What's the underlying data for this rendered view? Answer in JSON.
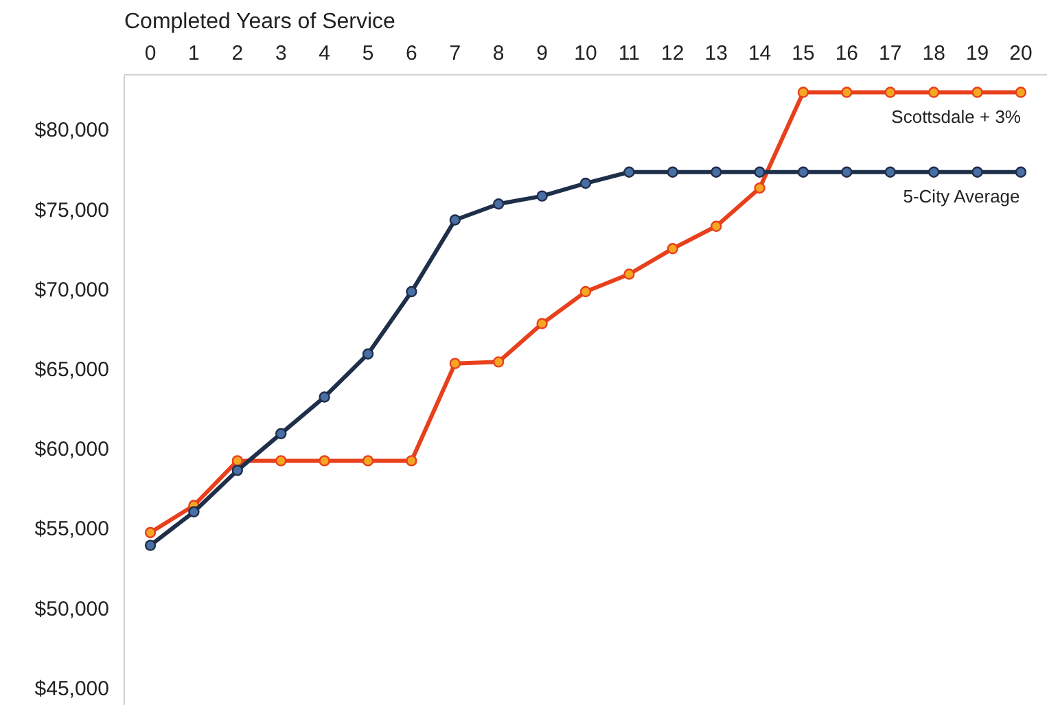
{
  "chart_data": {
    "type": "line",
    "xlabel": "Completed Years of Service",
    "x": [
      0,
      1,
      2,
      3,
      4,
      5,
      6,
      7,
      8,
      9,
      10,
      11,
      12,
      13,
      14,
      15,
      16,
      17,
      18,
      19,
      20
    ],
    "xlim": [
      -0.6,
      20.6
    ],
    "ylim": [
      44000,
      83500
    ],
    "xticks": [
      0,
      1,
      2,
      3,
      4,
      5,
      6,
      7,
      8,
      9,
      10,
      11,
      12,
      13,
      14,
      15,
      16,
      17,
      18,
      19,
      20
    ],
    "yticks": [
      {
        "value": 45000,
        "label": "$45,000"
      },
      {
        "value": 50000,
        "label": "$50,000"
      },
      {
        "value": 55000,
        "label": "$55,000"
      },
      {
        "value": 60000,
        "label": "$60,000"
      },
      {
        "value": 65000,
        "label": "$65,000"
      },
      {
        "value": 70000,
        "label": "$70,000"
      },
      {
        "value": 75000,
        "label": "$75,000"
      },
      {
        "value": 80000,
        "label": "$80,000"
      }
    ],
    "series": [
      {
        "name": "Scottsdale + 3%",
        "color": "#e8401c",
        "values": [
          54800,
          56500,
          59300,
          59300,
          59300,
          59300,
          59300,
          65400,
          65500,
          67900,
          69900,
          71000,
          72600,
          74000,
          76400,
          82400,
          82400,
          82400,
          82400,
          82400,
          82400
        ]
      },
      {
        "name": "5-City Average",
        "color": "#1f2f4a",
        "values": [
          54000,
          56100,
          58700,
          61000,
          63300,
          66000,
          69900,
          74400,
          75400,
          75900,
          76700,
          77400,
          77400,
          77400,
          77400,
          77400,
          77400,
          77400,
          77400,
          77400,
          77400
        ]
      }
    ],
    "marker": "circle",
    "line_style": "solid",
    "grid": false,
    "legend": "right"
  }
}
